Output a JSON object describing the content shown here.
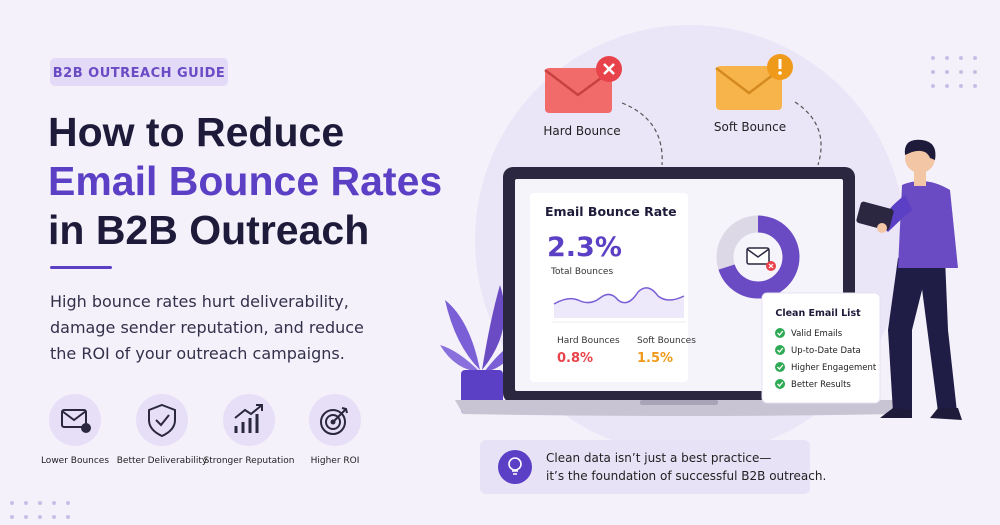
{
  "header": {
    "badge": "B2B OUTREACH GUIDE",
    "title_lines": [
      "How to Reduce",
      "Email Bounce Rates",
      "in B2B Outreach"
    ],
    "description_lines": [
      "High bounce rates hurt deliverability,",
      "damage sender reputation, and reduce",
      "the ROI of your outreach campaigns."
    ]
  },
  "features": [
    "Lower Bounces",
    "Better Deliverability",
    "Stronger Reputation",
    "Higher ROI"
  ],
  "bounce_types": {
    "hard": "Hard Bounce",
    "soft": "Soft Bounce"
  },
  "dashboard": {
    "title": "Email Bounce Rate",
    "total_value": "2.3%",
    "total_label": "Total Bounces",
    "hard_label": "Hard Bounces",
    "hard_value": "0.8%",
    "soft_label": "Soft Bounces",
    "soft_value": "1.5%"
  },
  "clean_list": {
    "title": "Clean Email List",
    "items": [
      "Valid Emails",
      "Up-to-Date Data",
      "Higher Engagement",
      "Better Results"
    ]
  },
  "callout": {
    "lines": [
      "Clean data isn’t just a best practice—",
      "it’s the foundation of successful B2B outreach."
    ]
  }
}
